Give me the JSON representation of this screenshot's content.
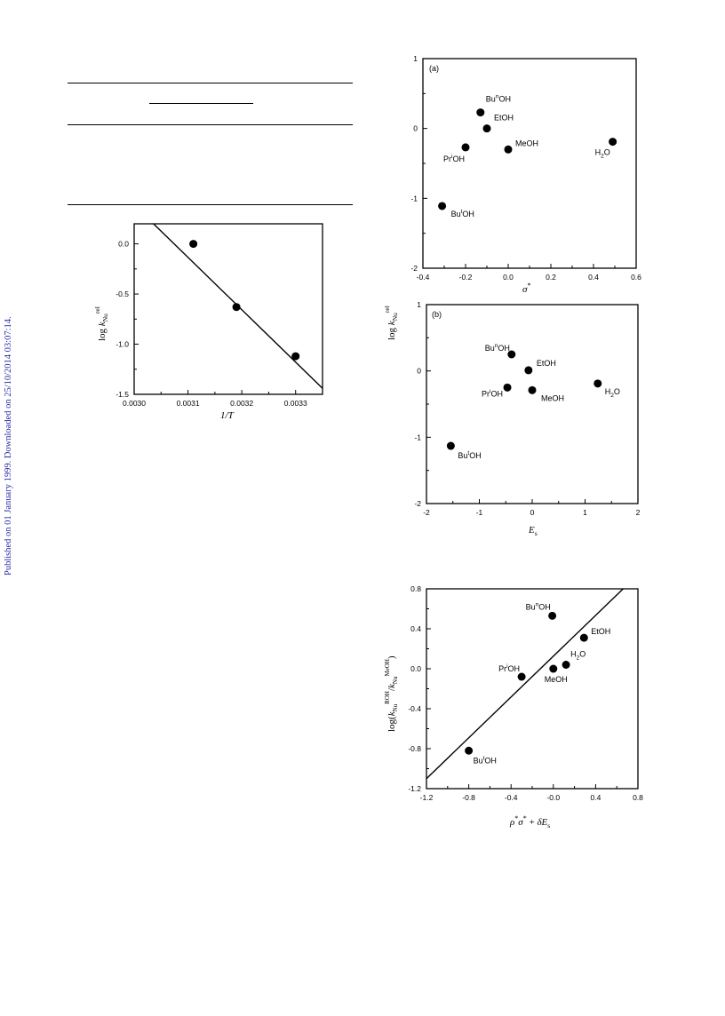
{
  "watermark": {
    "text": "Published on 01 January 1999. Downloaded on 25/10/2014 03:07:14."
  },
  "chart_data": [
    {
      "id": "arrhenius",
      "type": "scatter",
      "xlabel": "1/T",
      "ylabel": "log kNu rel",
      "xlim": [
        0.003,
        0.00335
      ],
      "ylim": [
        -1.5,
        0.2
      ],
      "xticks": [
        0.003,
        0.0031,
        0.0032,
        0.0033
      ],
      "xticklabels": [
        "0.0030",
        "0.0031",
        "0.0032",
        "0.0033"
      ],
      "yticks": [
        0.0,
        -0.5,
        -1.0,
        -1.5
      ],
      "yticklabels": [
        "0.0",
        "-0.5",
        "-1.0",
        "-1.5"
      ],
      "points": [
        {
          "x": 0.00311,
          "y": 0.0
        },
        {
          "x": 0.00319,
          "y": -0.63
        },
        {
          "x": 0.0033,
          "y": -1.12
        }
      ],
      "fit_line": [
        {
          "x": 0.003036,
          "y": 0.2
        },
        {
          "x": 0.00335,
          "y": -1.44
        }
      ]
    },
    {
      "id": "panel-a",
      "type": "scatter",
      "panel_label": "(a)",
      "xlabel": "σ*",
      "xlim": [
        -0.4,
        0.6
      ],
      "ylim": [
        -2,
        1
      ],
      "xticks": [
        -0.4,
        -0.2,
        0.0,
        0.2,
        0.4,
        0.6
      ],
      "xticklabels": [
        "-0.4",
        "-0.2",
        "0.0",
        "0.2",
        "0.4",
        "0.6"
      ],
      "yticks": [
        1,
        0,
        -1,
        -2
      ],
      "yticklabels": [
        "1",
        "0",
        "-1",
        "-2"
      ],
      "points": [
        {
          "x": -0.13,
          "y": 0.23,
          "label": "BunOH",
          "lx": 6,
          "ly": -12
        },
        {
          "x": -0.1,
          "y": 0.0,
          "label": "EtOH",
          "lx": 8,
          "ly": -9
        },
        {
          "x": -0.2,
          "y": -0.27,
          "label": "PriOH",
          "lx": -25,
          "ly": 16
        },
        {
          "x": 0.0,
          "y": -0.3,
          "label": "MeOH",
          "lx": 8,
          "ly": -4
        },
        {
          "x": 0.49,
          "y": -0.19,
          "label": "H2O",
          "lx": -20,
          "ly": 15
        },
        {
          "x": -0.31,
          "y": -1.11,
          "label": "ButOH",
          "lx": 10,
          "ly": 12
        }
      ]
    },
    {
      "id": "panel-b",
      "type": "scatter",
      "panel_label": "(b)",
      "xlabel": "Es",
      "ylabel": "log kNu rel",
      "xlim": [
        -2,
        2
      ],
      "ylim": [
        -2,
        1
      ],
      "xticks": [
        -2,
        -1,
        0,
        1,
        2
      ],
      "xticklabels": [
        "-2",
        "-1",
        "0",
        "1",
        "2"
      ],
      "yticks": [
        1,
        0,
        -1,
        -2
      ],
      "yticklabels": [
        "1",
        "0",
        "-1",
        "-2"
      ],
      "points": [
        {
          "x": -0.39,
          "y": 0.25,
          "label": "BunOH",
          "lx": -30,
          "ly": -4
        },
        {
          "x": -0.07,
          "y": 0.01,
          "label": "EtOH",
          "lx": 9,
          "ly": -5
        },
        {
          "x": -0.47,
          "y": -0.25,
          "label": "PriOH",
          "lx": -29,
          "ly": 10
        },
        {
          "x": 0.0,
          "y": -0.29,
          "label": "MeOH",
          "lx": 10,
          "ly": 12
        },
        {
          "x": 1.24,
          "y": -0.19,
          "label": "H2O",
          "lx": 8,
          "ly": 12
        },
        {
          "x": -1.54,
          "y": -1.13,
          "label": "ButOH",
          "lx": 8,
          "ly": 14
        }
      ]
    },
    {
      "id": "correlation",
      "type": "scatter",
      "xlabel": "ρ*σ* + δEs",
      "ylabel": "log(kNu ROH/kNu MeOH)",
      "xlim": [
        -1.2,
        0.8
      ],
      "ylim": [
        -1.2,
        0.8
      ],
      "xticks": [
        -1.2,
        -0.8,
        -0.4,
        0.0,
        0.4,
        0.8
      ],
      "xticklabels": [
        "-1.2",
        "-0.8",
        "-0.4",
        "-0.0",
        "0.4",
        "0.8"
      ],
      "yticks": [
        0.8,
        0.4,
        0.0,
        -0.4,
        -0.8,
        -1.2
      ],
      "yticklabels": [
        "0.8",
        "0.4",
        "0.0",
        "-0.4",
        "-0.8",
        "-1.2"
      ],
      "points": [
        {
          "x": -0.01,
          "y": 0.53,
          "label": "BunOH",
          "lx": -30,
          "ly": -7
        },
        {
          "x": 0.29,
          "y": 0.31,
          "label": "EtOH",
          "lx": 8,
          "ly": -4
        },
        {
          "x": 0.12,
          "y": 0.04,
          "label": "H2O",
          "lx": 5,
          "ly": -9
        },
        {
          "x": -0.3,
          "y": -0.08,
          "label": "PriOH",
          "lx": -26,
          "ly": -6
        },
        {
          "x": 0.0,
          "y": 0.0,
          "label": "MeOH",
          "lx": -10,
          "ly": 15
        },
        {
          "x": -0.8,
          "y": -0.82,
          "label": "ButOH",
          "lx": 5,
          "ly": 14
        }
      ],
      "fit_line": [
        {
          "x": -1.2,
          "y": -1.1
        },
        {
          "x": 0.66,
          "y": 0.8
        }
      ]
    }
  ]
}
